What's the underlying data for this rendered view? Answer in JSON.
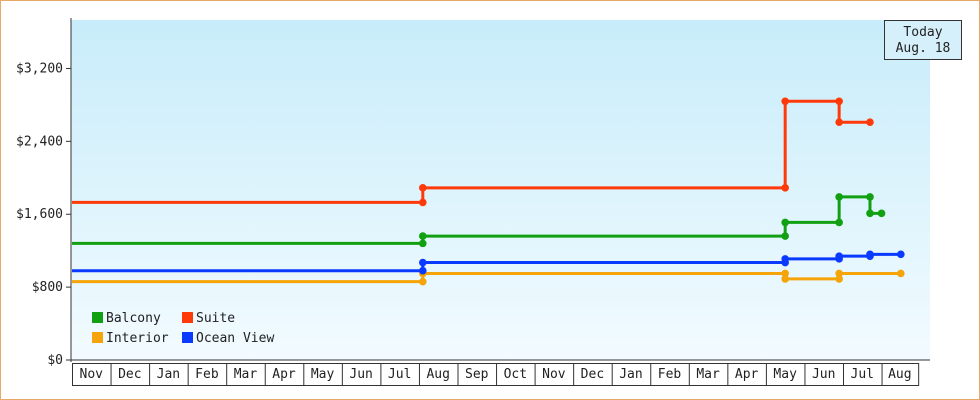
{
  "today": {
    "label": "Today",
    "date": "Aug. 18"
  },
  "chart_data": {
    "type": "line",
    "step": true,
    "y_ticks": [
      0,
      800,
      1600,
      2400,
      3200
    ],
    "y_tick_labels": [
      "$0",
      "$800",
      "$1,600",
      "$2,400",
      "$3,200"
    ],
    "ylim": [
      0,
      3732
    ],
    "months": [
      "Nov",
      "Dec",
      "Jan",
      "Feb",
      "Mar",
      "Apr",
      "May",
      "Jun",
      "Jul",
      "Aug",
      "Sep",
      "Oct",
      "Nov",
      "Dec",
      "Jan",
      "Feb",
      "Mar",
      "Apr",
      "May",
      "Jun",
      "Jul",
      "Aug"
    ],
    "x_unit": "months since start of first Nov",
    "xlim": [
      0,
      21.5
    ],
    "legend_position": "bottom-left",
    "grid": false,
    "series": [
      {
        "name": "Balcony",
        "color": "#11a011",
        "points": [
          [
            0,
            1280
          ],
          [
            9.1,
            1280
          ],
          [
            9.1,
            1360
          ],
          [
            18.5,
            1360
          ],
          [
            18.5,
            1510
          ],
          [
            19.9,
            1510
          ],
          [
            19.9,
            1790
          ],
          [
            20.7,
            1790
          ],
          [
            20.7,
            1610
          ],
          [
            21.0,
            1610
          ]
        ]
      },
      {
        "name": "Suite",
        "color": "#ff3a0a",
        "points": [
          [
            0,
            1730
          ],
          [
            9.1,
            1730
          ],
          [
            9.1,
            1890
          ],
          [
            18.5,
            1890
          ],
          [
            18.5,
            2840
          ],
          [
            19.9,
            2840
          ],
          [
            19.9,
            2610
          ],
          [
            20.7,
            2610
          ]
        ]
      },
      {
        "name": "Interior",
        "color": "#f5a50a",
        "points": [
          [
            0,
            860
          ],
          [
            9.1,
            860
          ],
          [
            9.1,
            950
          ],
          [
            18.5,
            950
          ],
          [
            18.5,
            890
          ],
          [
            19.9,
            890
          ],
          [
            19.9,
            950
          ],
          [
            21.5,
            950
          ]
        ]
      },
      {
        "name": "Ocean View",
        "color": "#0a3aff",
        "points": [
          [
            0,
            980
          ],
          [
            9.1,
            980
          ],
          [
            9.1,
            1070
          ],
          [
            18.5,
            1070
          ],
          [
            18.5,
            1110
          ],
          [
            19.9,
            1110
          ],
          [
            19.9,
            1140
          ],
          [
            20.7,
            1140
          ],
          [
            20.7,
            1160
          ],
          [
            21.5,
            1160
          ]
        ]
      }
    ]
  }
}
